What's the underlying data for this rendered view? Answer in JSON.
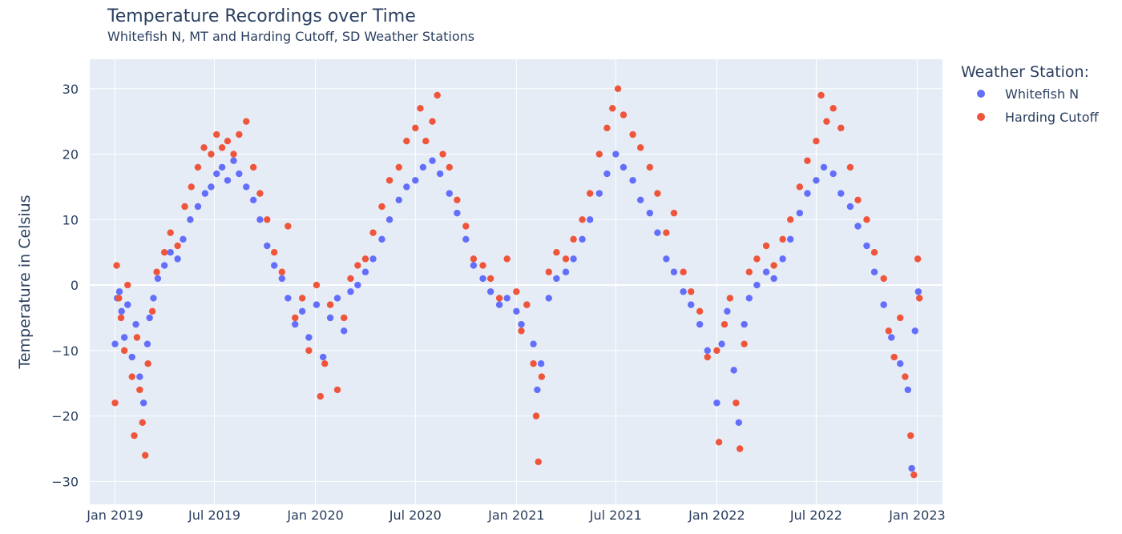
{
  "chart_data": {
    "type": "scatter",
    "title": "Temperature Recordings over Time",
    "subtitle": "Whitefish N, MT and Harding Cutoff, SD Weather Stations",
    "xlabel": "",
    "ylabel": "Temperature in Celsius",
    "x_range": [
      "2018-11-16",
      "2023-02-16"
    ],
    "y_range": [
      -33.5,
      34.5
    ],
    "x_ticks": [
      {
        "date": "2019-01-01",
        "label": "Jan 2019"
      },
      {
        "date": "2019-07-01",
        "label": "Jul 2019"
      },
      {
        "date": "2020-01-01",
        "label": "Jan 2020"
      },
      {
        "date": "2020-07-01",
        "label": "Jul 2020"
      },
      {
        "date": "2021-01-01",
        "label": "Jan 2021"
      },
      {
        "date": "2021-07-01",
        "label": "Jul 2021"
      },
      {
        "date": "2022-01-01",
        "label": "Jan 2022"
      },
      {
        "date": "2022-07-01",
        "label": "Jul 2022"
      },
      {
        "date": "2023-01-01",
        "label": "Jan 2023"
      }
    ],
    "y_ticks": [
      {
        "value": 30,
        "label": "30"
      },
      {
        "value": 20,
        "label": "20"
      },
      {
        "value": 10,
        "label": "10"
      },
      {
        "value": 0,
        "label": "0"
      },
      {
        "value": -10,
        "label": "−10"
      },
      {
        "value": -20,
        "label": "−20"
      },
      {
        "value": -30,
        "label": "−30"
      }
    ],
    "grid": true,
    "legend": {
      "title": "Weather Station:",
      "position": "top-right"
    },
    "series": [
      {
        "name": "Whitefish N",
        "color": "#636efa",
        "points": [
          [
            "2019-01-01",
            -9
          ],
          [
            "2019-01-05",
            -2
          ],
          [
            "2019-01-09",
            -1
          ],
          [
            "2019-01-13",
            -4
          ],
          [
            "2019-01-18",
            -8
          ],
          [
            "2019-01-24",
            -3
          ],
          [
            "2019-02-01",
            -11
          ],
          [
            "2019-02-08",
            -6
          ],
          [
            "2019-02-15",
            -14
          ],
          [
            "2019-02-22",
            -18
          ],
          [
            "2019-03-01",
            -9
          ],
          [
            "2019-03-05",
            -5
          ],
          [
            "2019-03-12",
            -2
          ],
          [
            "2019-03-20",
            1
          ],
          [
            "2019-04-01",
            3
          ],
          [
            "2019-04-12",
            5
          ],
          [
            "2019-04-25",
            4
          ],
          [
            "2019-05-05",
            7
          ],
          [
            "2019-05-18",
            10
          ],
          [
            "2019-06-01",
            12
          ],
          [
            "2019-06-14",
            14
          ],
          [
            "2019-06-25",
            15
          ],
          [
            "2019-07-05",
            17
          ],
          [
            "2019-07-15",
            18
          ],
          [
            "2019-07-25",
            16
          ],
          [
            "2019-08-05",
            19
          ],
          [
            "2019-08-15",
            17
          ],
          [
            "2019-08-28",
            15
          ],
          [
            "2019-09-10",
            13
          ],
          [
            "2019-09-22",
            10
          ],
          [
            "2019-10-05",
            6
          ],
          [
            "2019-10-18",
            3
          ],
          [
            "2019-11-01",
            1
          ],
          [
            "2019-11-12",
            -2
          ],
          [
            "2019-11-25",
            -6
          ],
          [
            "2019-12-08",
            -4
          ],
          [
            "2019-12-20",
            -8
          ],
          [
            "2020-01-03",
            -3
          ],
          [
            "2020-01-15",
            -11
          ],
          [
            "2020-01-28",
            -5
          ],
          [
            "2020-02-10",
            -2
          ],
          [
            "2020-02-22",
            -7
          ],
          [
            "2020-03-05",
            -1
          ],
          [
            "2020-03-18",
            0
          ],
          [
            "2020-04-01",
            2
          ],
          [
            "2020-04-15",
            4
          ],
          [
            "2020-05-01",
            7
          ],
          [
            "2020-05-15",
            10
          ],
          [
            "2020-06-01",
            13
          ],
          [
            "2020-06-15",
            15
          ],
          [
            "2020-07-01",
            16
          ],
          [
            "2020-07-15",
            18
          ],
          [
            "2020-08-01",
            19
          ],
          [
            "2020-08-15",
            17
          ],
          [
            "2020-09-01",
            14
          ],
          [
            "2020-09-15",
            11
          ],
          [
            "2020-10-01",
            7
          ],
          [
            "2020-10-15",
            3
          ],
          [
            "2020-11-01",
            1
          ],
          [
            "2020-11-15",
            -1
          ],
          [
            "2020-12-01",
            -3
          ],
          [
            "2020-12-15",
            -2
          ],
          [
            "2021-01-01",
            -4
          ],
          [
            "2021-01-10",
            -6
          ],
          [
            "2021-01-20",
            -3
          ],
          [
            "2021-02-01",
            -9
          ],
          [
            "2021-02-08",
            -16
          ],
          [
            "2021-02-15",
            -12
          ],
          [
            "2021-03-01",
            -2
          ],
          [
            "2021-03-15",
            1
          ],
          [
            "2021-04-01",
            2
          ],
          [
            "2021-04-15",
            4
          ],
          [
            "2021-05-01",
            7
          ],
          [
            "2021-05-15",
            10
          ],
          [
            "2021-06-01",
            14
          ],
          [
            "2021-06-15",
            17
          ],
          [
            "2021-07-01",
            20
          ],
          [
            "2021-07-15",
            18
          ],
          [
            "2021-08-01",
            16
          ],
          [
            "2021-08-15",
            13
          ],
          [
            "2021-09-01",
            11
          ],
          [
            "2021-09-15",
            8
          ],
          [
            "2021-10-01",
            4
          ],
          [
            "2021-10-15",
            2
          ],
          [
            "2021-11-01",
            -1
          ],
          [
            "2021-11-15",
            -3
          ],
          [
            "2021-12-01",
            -6
          ],
          [
            "2021-12-15",
            -10
          ],
          [
            "2022-01-01",
            -18
          ],
          [
            "2022-01-10",
            -9
          ],
          [
            "2022-01-20",
            -4
          ],
          [
            "2022-02-01",
            -13
          ],
          [
            "2022-02-10",
            -21
          ],
          [
            "2022-02-20",
            -6
          ],
          [
            "2022-03-01",
            -2
          ],
          [
            "2022-03-15",
            0
          ],
          [
            "2022-04-01",
            2
          ],
          [
            "2022-04-15",
            1
          ],
          [
            "2022-05-01",
            4
          ],
          [
            "2022-05-15",
            7
          ],
          [
            "2022-06-01",
            11
          ],
          [
            "2022-06-15",
            14
          ],
          [
            "2022-07-01",
            16
          ],
          [
            "2022-07-15",
            18
          ],
          [
            "2022-08-01",
            17
          ],
          [
            "2022-08-15",
            14
          ],
          [
            "2022-09-01",
            12
          ],
          [
            "2022-09-15",
            9
          ],
          [
            "2022-10-01",
            6
          ],
          [
            "2022-10-15",
            2
          ],
          [
            "2022-11-01",
            -3
          ],
          [
            "2022-11-15",
            -8
          ],
          [
            "2022-12-01",
            -12
          ],
          [
            "2022-12-15",
            -16
          ],
          [
            "2022-12-22",
            -28
          ],
          [
            "2022-12-28",
            -7
          ],
          [
            "2023-01-03",
            -1
          ]
        ]
      },
      {
        "name": "Harding Cutoff",
        "color": "#ef553b",
        "points": [
          [
            "2019-01-01",
            -18
          ],
          [
            "2019-01-04",
            3
          ],
          [
            "2019-01-08",
            -2
          ],
          [
            "2019-01-12",
            -5
          ],
          [
            "2019-01-18",
            -10
          ],
          [
            "2019-01-24",
            0
          ],
          [
            "2019-02-01",
            -14
          ],
          [
            "2019-02-05",
            -23
          ],
          [
            "2019-02-10",
            -8
          ],
          [
            "2019-02-15",
            -16
          ],
          [
            "2019-02-20",
            -21
          ],
          [
            "2019-02-25",
            -26
          ],
          [
            "2019-03-02",
            -12
          ],
          [
            "2019-03-10",
            -4
          ],
          [
            "2019-03-18",
            2
          ],
          [
            "2019-04-01",
            5
          ],
          [
            "2019-04-12",
            8
          ],
          [
            "2019-04-25",
            6
          ],
          [
            "2019-05-08",
            12
          ],
          [
            "2019-05-20",
            15
          ],
          [
            "2019-06-01",
            18
          ],
          [
            "2019-06-12",
            21
          ],
          [
            "2019-06-25",
            20
          ],
          [
            "2019-07-05",
            23
          ],
          [
            "2019-07-15",
            21
          ],
          [
            "2019-07-25",
            22
          ],
          [
            "2019-08-05",
            20
          ],
          [
            "2019-08-15",
            23
          ],
          [
            "2019-08-28",
            25
          ],
          [
            "2019-09-10",
            18
          ],
          [
            "2019-09-22",
            14
          ],
          [
            "2019-10-05",
            10
          ],
          [
            "2019-10-18",
            5
          ],
          [
            "2019-11-01",
            2
          ],
          [
            "2019-11-12",
            9
          ],
          [
            "2019-11-25",
            -5
          ],
          [
            "2019-12-08",
            -2
          ],
          [
            "2019-12-20",
            -10
          ],
          [
            "2020-01-03",
            0
          ],
          [
            "2020-01-10",
            -17
          ],
          [
            "2020-01-18",
            -12
          ],
          [
            "2020-01-28",
            -3
          ],
          [
            "2020-02-10",
            -16
          ],
          [
            "2020-02-22",
            -5
          ],
          [
            "2020-03-05",
            1
          ],
          [
            "2020-03-18",
            3
          ],
          [
            "2020-04-01",
            4
          ],
          [
            "2020-04-15",
            8
          ],
          [
            "2020-05-01",
            12
          ],
          [
            "2020-05-15",
            16
          ],
          [
            "2020-06-01",
            18
          ],
          [
            "2020-06-15",
            22
          ],
          [
            "2020-07-01",
            24
          ],
          [
            "2020-07-10",
            27
          ],
          [
            "2020-07-20",
            22
          ],
          [
            "2020-08-01",
            25
          ],
          [
            "2020-08-10",
            29
          ],
          [
            "2020-08-20",
            20
          ],
          [
            "2020-09-01",
            18
          ],
          [
            "2020-09-15",
            13
          ],
          [
            "2020-10-01",
            9
          ],
          [
            "2020-10-15",
            4
          ],
          [
            "2020-11-01",
            3
          ],
          [
            "2020-11-15",
            1
          ],
          [
            "2020-12-01",
            -2
          ],
          [
            "2020-12-15",
            4
          ],
          [
            "2021-01-01",
            -1
          ],
          [
            "2021-01-10",
            -7
          ],
          [
            "2021-01-20",
            -3
          ],
          [
            "2021-02-01",
            -12
          ],
          [
            "2021-02-06",
            -20
          ],
          [
            "2021-02-10",
            -27
          ],
          [
            "2021-02-16",
            -14
          ],
          [
            "2021-03-01",
            2
          ],
          [
            "2021-03-15",
            5
          ],
          [
            "2021-04-01",
            4
          ],
          [
            "2021-04-15",
            7
          ],
          [
            "2021-05-01",
            10
          ],
          [
            "2021-05-15",
            14
          ],
          [
            "2021-06-01",
            20
          ],
          [
            "2021-06-15",
            24
          ],
          [
            "2021-06-25",
            27
          ],
          [
            "2021-07-05",
            30
          ],
          [
            "2021-07-15",
            26
          ],
          [
            "2021-08-01",
            23
          ],
          [
            "2021-08-15",
            21
          ],
          [
            "2021-09-01",
            18
          ],
          [
            "2021-09-15",
            14
          ],
          [
            "2021-10-01",
            8
          ],
          [
            "2021-10-15",
            11
          ],
          [
            "2021-11-01",
            2
          ],
          [
            "2021-11-15",
            -1
          ],
          [
            "2021-12-01",
            -4
          ],
          [
            "2021-12-15",
            -11
          ],
          [
            "2022-01-01",
            -10
          ],
          [
            "2022-01-05",
            -24
          ],
          [
            "2022-01-15",
            -6
          ],
          [
            "2022-01-25",
            -2
          ],
          [
            "2022-02-05",
            -18
          ],
          [
            "2022-02-12",
            -25
          ],
          [
            "2022-02-20",
            -9
          ],
          [
            "2022-03-01",
            2
          ],
          [
            "2022-03-15",
            4
          ],
          [
            "2022-04-01",
            6
          ],
          [
            "2022-04-15",
            3
          ],
          [
            "2022-05-01",
            7
          ],
          [
            "2022-05-15",
            10
          ],
          [
            "2022-06-01",
            15
          ],
          [
            "2022-06-15",
            19
          ],
          [
            "2022-07-01",
            22
          ],
          [
            "2022-07-10",
            29
          ],
          [
            "2022-07-20",
            25
          ],
          [
            "2022-08-01",
            27
          ],
          [
            "2022-08-15",
            24
          ],
          [
            "2022-09-01",
            18
          ],
          [
            "2022-09-15",
            13
          ],
          [
            "2022-10-01",
            10
          ],
          [
            "2022-10-15",
            5
          ],
          [
            "2022-11-01",
            1
          ],
          [
            "2022-11-10",
            -7
          ],
          [
            "2022-11-20",
            -11
          ],
          [
            "2022-12-01",
            -5
          ],
          [
            "2022-12-10",
            -14
          ],
          [
            "2022-12-20",
            -23
          ],
          [
            "2022-12-26",
            -29
          ],
          [
            "2023-01-02",
            4
          ],
          [
            "2023-01-05",
            -2
          ]
        ]
      }
    ]
  }
}
